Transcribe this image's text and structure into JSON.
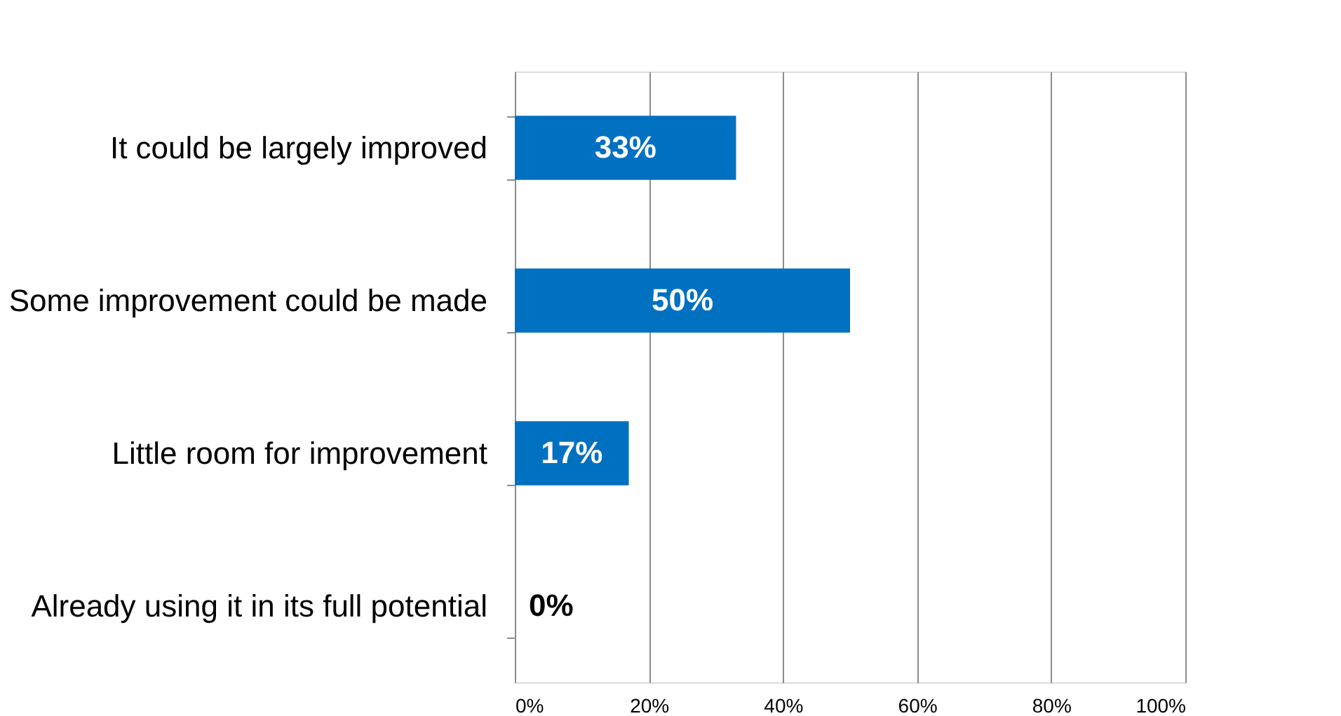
{
  "chart_data": {
    "type": "bar",
    "orientation": "horizontal",
    "categories": [
      "It could be largely improved",
      "Some improvement could be made",
      "Little room for improvement",
      "Already using it in its full potential"
    ],
    "values": [
      33,
      50,
      17,
      0
    ],
    "value_labels": [
      "33%",
      "50%",
      "17%",
      "0%"
    ],
    "color": "#0070c0",
    "xlim": [
      0,
      100
    ],
    "xticks": [
      {
        "value": 0,
        "label": "0%"
      },
      {
        "value": 20,
        "label": "20%"
      },
      {
        "value": 40,
        "label": "40%"
      },
      {
        "value": 60,
        "label": "60%"
      },
      {
        "value": 80,
        "label": "80%"
      },
      {
        "value": 100,
        "label": "100%"
      }
    ],
    "grid": "x"
  }
}
